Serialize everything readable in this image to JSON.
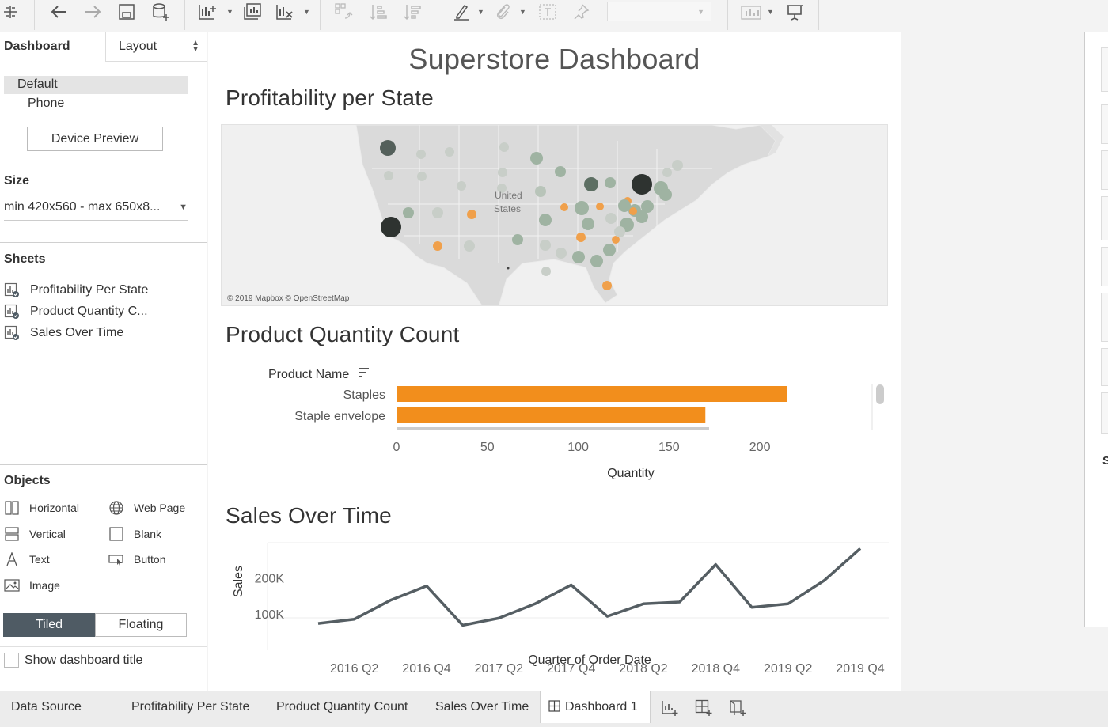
{
  "left_panel": {
    "tabs": {
      "dashboard": "Dashboard",
      "layout": "Layout"
    },
    "device_options": [
      "Default",
      "Phone"
    ],
    "device_preview_button": "Device Preview",
    "size": {
      "title": "Size",
      "value": "min 420x560 - max 650x8..."
    },
    "sheets": {
      "title": "Sheets",
      "items": [
        "Profitability Per State",
        "Product Quantity C...",
        "Sales Over Time"
      ]
    },
    "objects": {
      "title": "Objects",
      "items": [
        "Horizontal",
        "Web Page",
        "Vertical",
        "Blank",
        "Text",
        "Button",
        "Image"
      ]
    },
    "mode": {
      "tiled": "Tiled",
      "floating": "Floating"
    },
    "show_title_label": "Show dashboard title"
  },
  "dashboard": {
    "title": "Superstore Dashboard",
    "map": {
      "heading": "Profitability per State",
      "label_line1": "United",
      "label_line2": "States",
      "attribution": "© 2019 Mapbox © OpenStreetMap"
    },
    "bar_heading": "Product Quantity Count",
    "line_heading": "Sales Over Time"
  },
  "chart_data": [
    {
      "type": "bar",
      "orientation": "horizontal",
      "title": "",
      "dimension_label": "Product Name",
      "categories": [
        "Staples",
        "Staple envelope"
      ],
      "values": [
        215,
        170
      ],
      "xlabel": "Quantity",
      "xticks": [
        0,
        50,
        100,
        150,
        200
      ],
      "xlim": [
        0,
        230
      ],
      "color": "#f28e1c"
    },
    {
      "type": "line",
      "title": "",
      "ylabel": "Sales",
      "xlabel": "Quarter of Order Date",
      "yticks": [
        {
          "value": 200000,
          "label": "200K"
        },
        {
          "value": 100000,
          "label": "100K"
        }
      ],
      "ylim": [
        0,
        310000
      ],
      "x": [
        "2016 Q1",
        "2016 Q2",
        "2016 Q3",
        "2016 Q4",
        "2017 Q1",
        "2017 Q2",
        "2017 Q3",
        "2017 Q4",
        "2018 Q1",
        "2018 Q2",
        "2018 Q3",
        "2018 Q4",
        "2019 Q1",
        "2019 Q2",
        "2019 Q3",
        "2019 Q4"
      ],
      "xtick_labels": [
        "2016 Q2",
        "2016 Q4",
        "2017 Q2",
        "2017 Q4",
        "2018 Q2",
        "2018 Q4",
        "2019 Q2",
        "2019 Q4"
      ],
      "values": [
        75000,
        87000,
        140000,
        180000,
        70000,
        90000,
        130000,
        183000,
        95000,
        130000,
        135000,
        240000,
        120000,
        130000,
        195000,
        285000
      ],
      "color": "#555e63"
    }
  ],
  "bottom_tabs": [
    "Data Source",
    "Profitability Per State",
    "Product Quantity Count",
    "Sales Over Time",
    "Dashboard 1"
  ]
}
